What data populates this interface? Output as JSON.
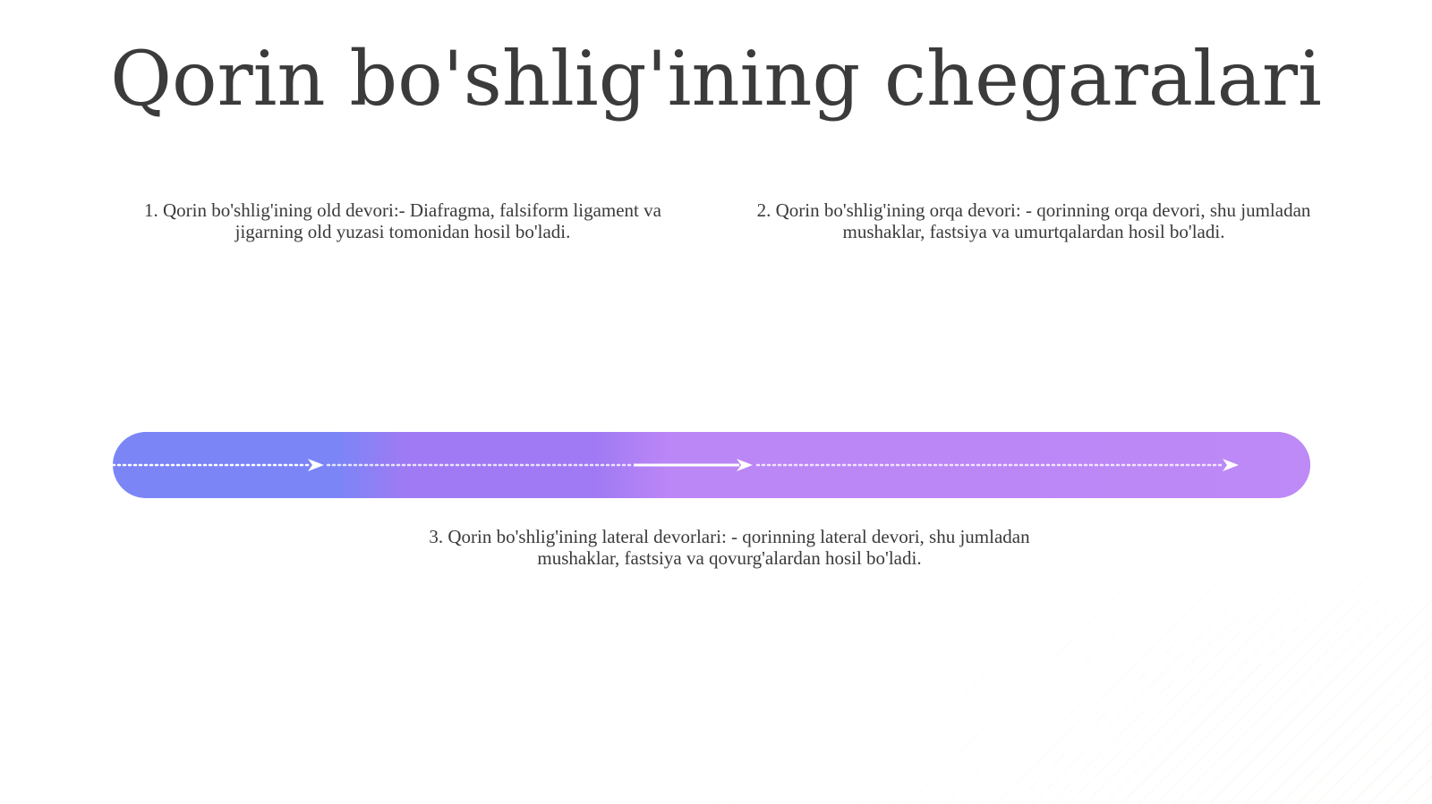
{
  "slide": {
    "title": "Qorin bo'shlig'ining chegaralari",
    "items": [
      {
        "text": "1. Qorin bo'shlig'ining old devori:- Diafragma, falsiform ligament va jigarning old yuzasi tomonidan hosil bo'ladi."
      },
      {
        "text": "2. Qorin bo'shlig'ining orqa devori: - qorinning orqa devori, shu jumladan mushaklar, fastsiya va umurtqalardan hosil bo'ladi."
      },
      {
        "text": "3. Qorin bo'shlig'ining lateral devorlari: - qorinning lateral devori, shu jumladan mushaklar, fastsiya va qovurg'alardan hosil bo'ladi."
      }
    ]
  },
  "colors": {
    "segment_1": "#7b85f6",
    "segment_2": "#a07af4",
    "segment_3": "#bb86f6",
    "arrow": "#ffffff",
    "text": "#3a3a3a"
  },
  "icons": {
    "arrowhead": "chevron-right-arrowhead"
  }
}
